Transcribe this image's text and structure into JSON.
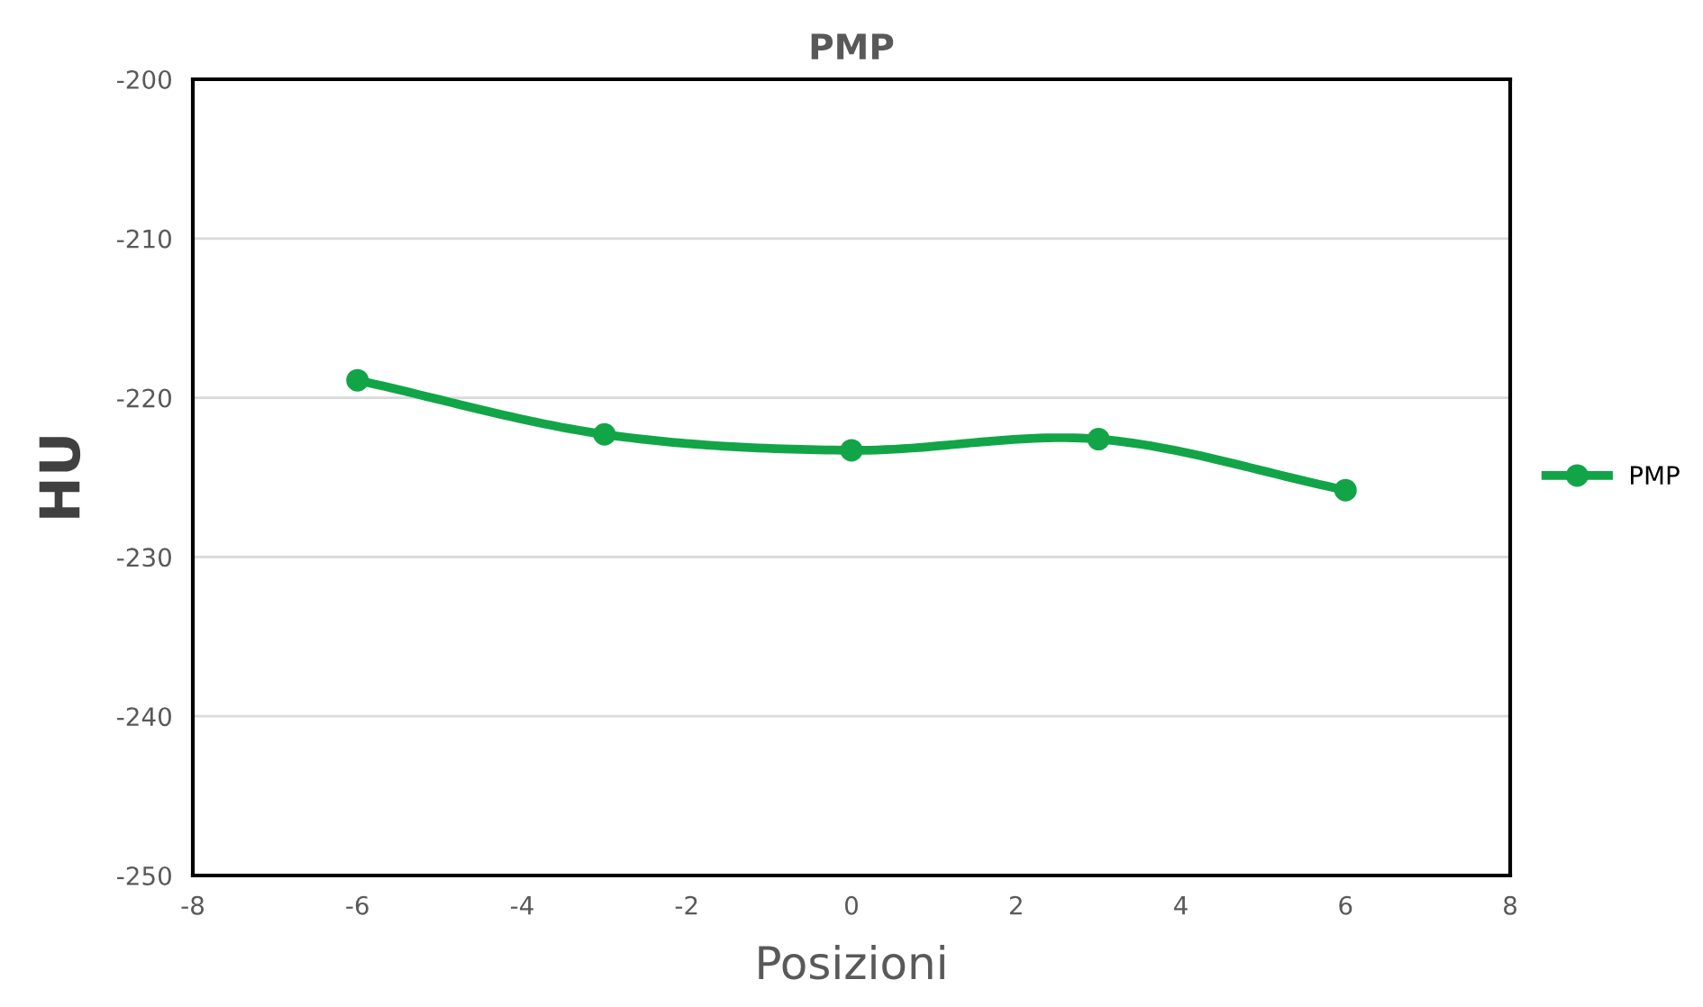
{
  "chart_data": {
    "type": "line",
    "title": "PMP",
    "xlabel": "Posizioni",
    "ylabel": "HU",
    "x": [
      -6,
      -3,
      0,
      3,
      6
    ],
    "series": [
      {
        "name": "PMP",
        "color": "#12a548",
        "values": [
          -218.9,
          -222.3,
          -223.3,
          -222.6,
          -225.8
        ]
      }
    ],
    "xlim": [
      -8,
      8
    ],
    "xticks": [
      -8,
      -6,
      -4,
      -2,
      0,
      2,
      4,
      6,
      8
    ],
    "ylim": [
      -250,
      -200
    ],
    "yticks": [
      -250,
      -240,
      -230,
      -220,
      -210,
      -200
    ],
    "grid": "y",
    "legend": "right",
    "marker": "circle",
    "line_style": "solid"
  }
}
